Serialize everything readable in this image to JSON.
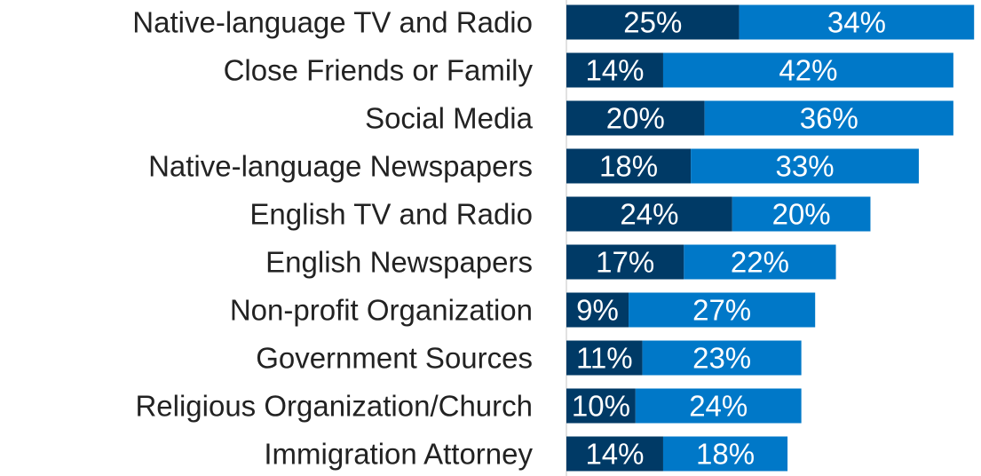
{
  "chart_data": {
    "type": "stacked-bar-horizontal",
    "categories": [
      "Native-language TV and Radio",
      "Close Friends or Family",
      "Social Media",
      "Native-language Newspapers",
      "English TV and Radio",
      "English Newspapers",
      "Non-profit Organization",
      "Government Sources",
      "Religious Organization/Church",
      "Immigration Attorney"
    ],
    "series": [
      {
        "color": "#003a66",
        "values": [
          25,
          14,
          20,
          18,
          24,
          17,
          9,
          11,
          10,
          14
        ],
        "value_labels": [
          "25%",
          "14%",
          "20%",
          "18%",
          "24%",
          "17%",
          "9%",
          "11%",
          "10%",
          "14%"
        ]
      },
      {
        "color": "#0078c8",
        "values": [
          34,
          42,
          36,
          33,
          20,
          22,
          27,
          23,
          24,
          18
        ],
        "value_labels": [
          "34%",
          "42%",
          "36%",
          "33%",
          "20%",
          "22%",
          "27%",
          "23%",
          "24%",
          "18%"
        ]
      }
    ],
    "xlim": [
      0,
      60
    ]
  }
}
